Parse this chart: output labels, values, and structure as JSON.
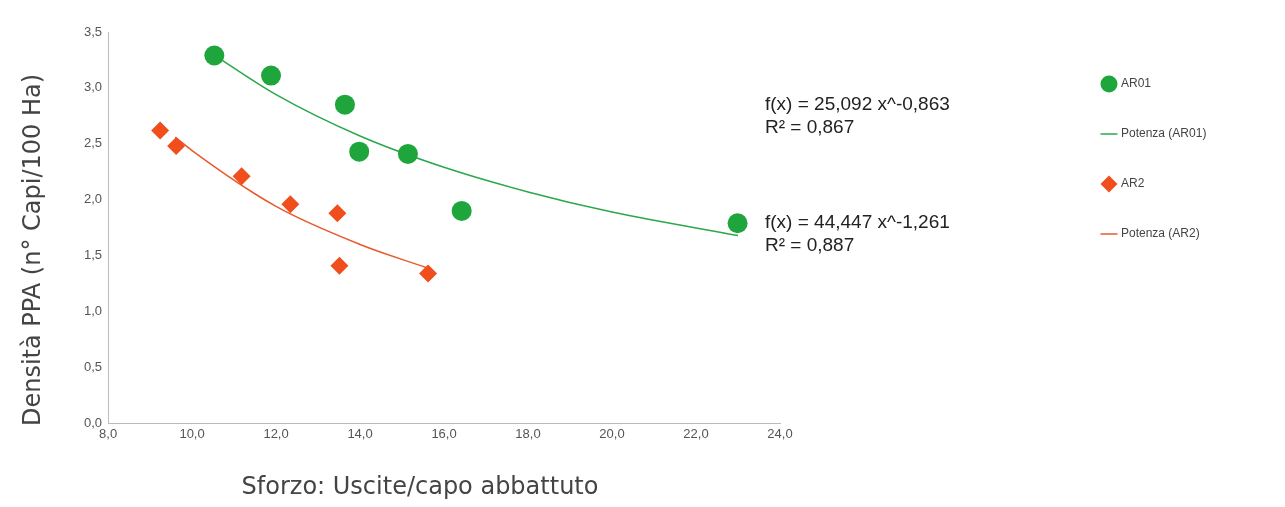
{
  "chart_data": {
    "type": "scatter",
    "xlabel": "Sforzo: Uscite/capo abbattuto",
    "ylabel": "Densità  PPA (n° Capi/100 Ha)",
    "xlim": [
      8,
      24
    ],
    "xticks": [
      {
        "value": 8,
        "label": "8,0"
      },
      {
        "value": 10,
        "label": "10,0"
      },
      {
        "value": 12,
        "label": "12,0"
      },
      {
        "value": 14,
        "label": "14,0"
      },
      {
        "value": 16,
        "label": "16,0"
      },
      {
        "value": 18,
        "label": "18,0"
      },
      {
        "value": 20,
        "label": "20,0"
      },
      {
        "value": 22,
        "label": "22,0"
      },
      {
        "value": 24,
        "label": "24,0"
      }
    ],
    "ylim": [
      0,
      3.5
    ],
    "yticks": [
      {
        "value": 0,
        "label": "0,0"
      },
      {
        "value": 0.5,
        "label": "0,5"
      },
      {
        "value": 1,
        "label": "1,0"
      },
      {
        "value": 1.5,
        "label": "1,5"
      },
      {
        "value": 2,
        "label": "2,0"
      },
      {
        "value": 2.5,
        "label": "2,5"
      },
      {
        "value": 3,
        "label": "3,0"
      },
      {
        "value": 3.5,
        "label": "3,5"
      }
    ],
    "grid": false,
    "legend": "right",
    "series": [
      {
        "name": "AR01",
        "type": "scatter",
        "marker": "circle",
        "color": "#1ea53c",
        "x": [
          10.53,
          11.88,
          13.64,
          13.98,
          15.14,
          16.42,
          22.99
        ],
        "values": [
          3.29,
          3.11,
          2.85,
          2.43,
          2.41,
          1.9,
          1.79
        ]
      },
      {
        "name": "Potenza (AR01)",
        "type": "line",
        "marker": "none",
        "line_style": "solid",
        "color": "#2aa84a",
        "x": [
          10.5,
          12,
          14,
          16,
          18,
          20,
          23
        ],
        "values": [
          3.3,
          2.94,
          2.57,
          2.29,
          2.07,
          1.89,
          1.68
        ]
      },
      {
        "name": "AR2",
        "type": "scatter",
        "marker": "diamond",
        "color": "#f04e1c",
        "x": [
          9.24,
          9.62,
          11.18,
          12.34,
          13.46,
          13.51,
          15.62
        ],
        "values": [
          2.62,
          2.48,
          2.21,
          1.96,
          1.88,
          1.41,
          1.34
        ]
      },
      {
        "name": "Potenza (AR2)",
        "type": "line",
        "marker": "none",
        "line_style": "solid",
        "color": "#e85a2c",
        "x": [
          9.6,
          10,
          12,
          14,
          15.6
        ],
        "values": [
          2.56,
          2.44,
          1.94,
          1.6,
          1.39
        ]
      }
    ],
    "annotations": [
      "f(x) = 25,092 x^-0,863\nR² = 0,867",
      "f(x) = 44,447 x^-1,261\nR² = 0,887"
    ]
  }
}
